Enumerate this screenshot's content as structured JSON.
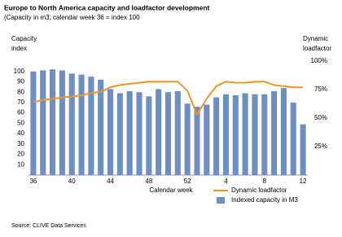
{
  "chart_data": {
    "type": "bar_line",
    "title": "Europe to North America capacity and loadfactor development",
    "subtitle": "(Capacity in m3; calendar week 36 = index 100",
    "y_label": [
      "Capacity",
      "index"
    ],
    "y2_label": [
      "Dynamic",
      "loadfactor"
    ],
    "x_label": "Calendar week",
    "source": "Source: CLIVE Data Services",
    "categories": [
      "36",
      null,
      null,
      null,
      "40",
      null,
      null,
      null,
      "44",
      null,
      null,
      null,
      "48",
      null,
      null,
      null,
      "52",
      null,
      null,
      null,
      "4",
      null,
      null,
      null,
      "8",
      null,
      null,
      null,
      "12"
    ],
    "series": [
      {
        "name": "Indexed capacity in M3",
        "type": "bar",
        "color": "#6f8fc2",
        "values": [
          100,
          101,
          102,
          101,
          98,
          97,
          95,
          92,
          83,
          79,
          81,
          80,
          76,
          83,
          80,
          81,
          69,
          66,
          68,
          75,
          78,
          77,
          79,
          78,
          78,
          81,
          84,
          70,
          49
        ]
      },
      {
        "name": "Dynamic loadfactor",
        "type": "line",
        "axis": "y2",
        "color": "#f39324",
        "values": [
          64,
          66,
          67,
          68,
          69,
          70,
          72,
          73,
          77,
          79,
          80,
          81,
          82,
          82,
          82,
          82,
          74,
          53,
          67,
          78,
          82,
          81,
          81,
          82,
          82,
          79,
          78,
          77,
          77
        ]
      }
    ],
    "ylim": [
      0,
      110
    ],
    "yticks": [
      10,
      20,
      30,
      40,
      50,
      60,
      70,
      80,
      90,
      100
    ],
    "y2lim": [
      0,
      100
    ],
    "y2ticks": [
      {
        "value": 25,
        "label": "25%"
      },
      {
        "value": 50,
        "label": "50%"
      },
      {
        "value": 75,
        "label": "75%"
      },
      {
        "value": 100,
        "label": "100%"
      }
    ]
  }
}
